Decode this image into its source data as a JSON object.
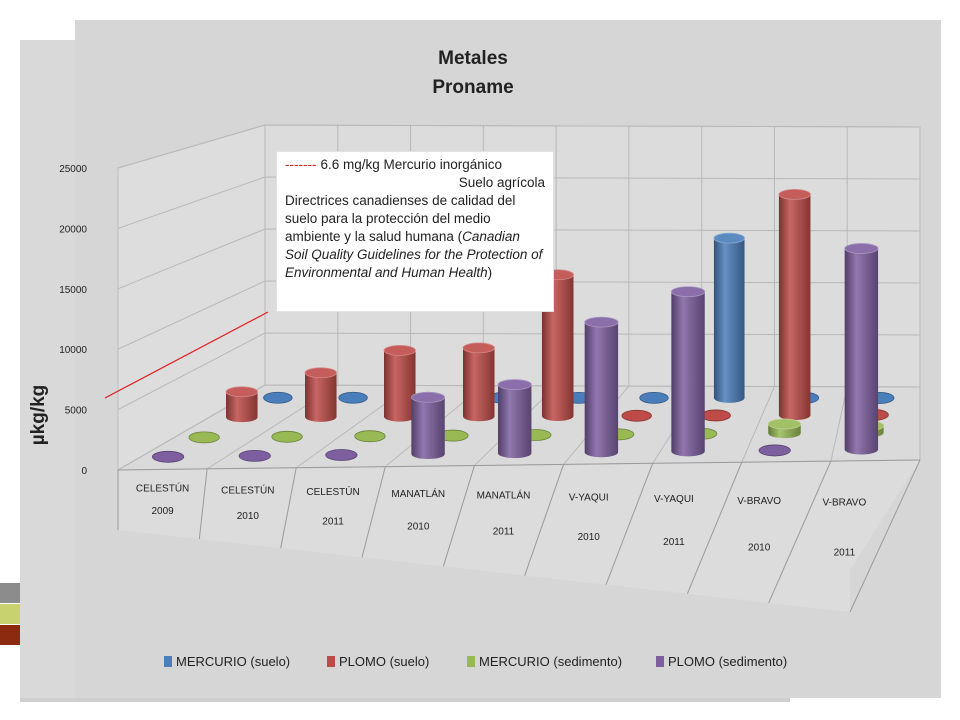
{
  "chart_data": {
    "type": "bar",
    "subtype": "3d-cylinder",
    "title_line1": "Metales",
    "title_line2": "Proname",
    "ylabel": "µkg/kg",
    "ylim": [
      0,
      25000
    ],
    "yticks": [
      0,
      5000,
      10000,
      15000,
      20000,
      25000
    ],
    "grid": true,
    "legend_position": "bottom",
    "categories": [
      {
        "line1": "CELESTÚN",
        "line2": "2009"
      },
      {
        "line1": "CELESTÚN",
        "line2": "2010"
      },
      {
        "line1": "CELESTÚN",
        "line2": "2011"
      },
      {
        "line1": "MANATLÁN",
        "line2": "2010"
      },
      {
        "line1": "MANATLÁN",
        "line2": "2011"
      },
      {
        "line1": "V-YAQUI",
        "line2": "2010"
      },
      {
        "line1": "V-YAQUI",
        "line2": "2011"
      },
      {
        "line1": "V-BRAVO",
        "line2": "2010"
      },
      {
        "line1": "V-BRAVO",
        "line2": "2011"
      }
    ],
    "series": [
      {
        "name": "MERCURIO (suelo)",
        "color": "#4a7ebb",
        "values": [
          0,
          0,
          0,
          50,
          50,
          50,
          15000,
          50,
          50
        ]
      },
      {
        "name": "PLOMO (suelo)",
        "color": "#be4b48",
        "values": [
          2300,
          4000,
          6000,
          6200,
          12800,
          50,
          50,
          20000,
          0
        ]
      },
      {
        "name": "MERCURIO (sedimento)",
        "color": "#98b954",
        "values": [
          0,
          0,
          0,
          50,
          50,
          50,
          50,
          800,
          600
        ]
      },
      {
        "name": "PLOMO (sedimento)",
        "color": "#7d5fa0",
        "values": [
          0,
          0,
          0,
          4800,
          5800,
          11000,
          13500,
          100,
          17000
        ]
      }
    ]
  },
  "annotation": {
    "dashes": "-------",
    "line1_text": "6.6 mg/kg  Mercurio inorgánico",
    "line2": "Suelo agrícola",
    "body": "Directrices canadienses de calidad del suelo para la protección del medio ambiente y la salud humana (",
    "body_italic": "Canadian Soil Quality Guidelines for the Protection of Environmental and Human Health",
    "body_end": ")",
    "marker_color": "#e02020"
  }
}
